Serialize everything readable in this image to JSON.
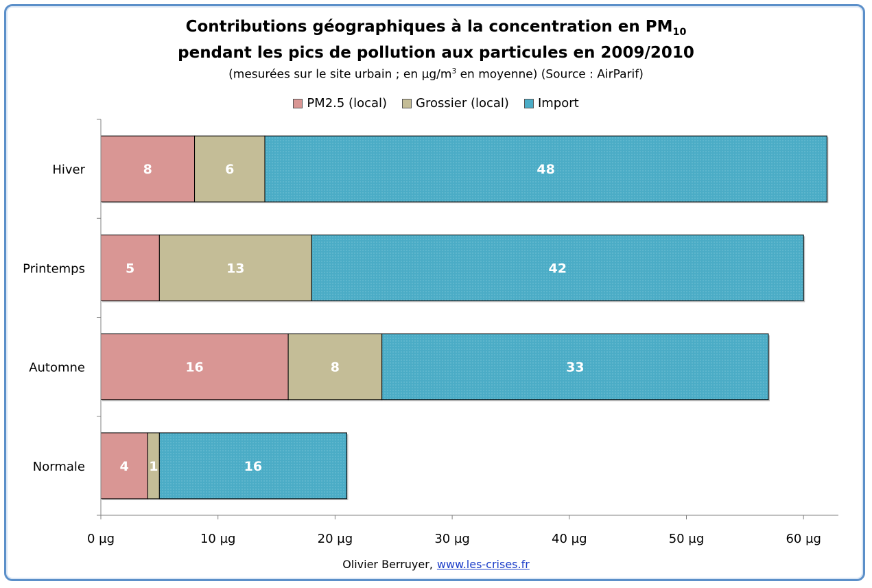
{
  "chart_data": {
    "type": "bar",
    "orientation": "horizontal",
    "stacked": true,
    "title_line1": "Contributions géographiques à la concentration en PM",
    "title_line1_sub": "10",
    "title_line2": "pendant les pics de pollution aux particules en 2009/2010",
    "subtitle_pre": "(mesurées sur le site urbain ; en µg/m",
    "subtitle_sup": "3",
    "subtitle_post": " en moyenne) (Source : AirParif)",
    "categories": [
      "Hiver",
      "Printemps",
      "Automne",
      "Normale"
    ],
    "series": [
      {
        "name": "PM2.5 (local)",
        "values": [
          8,
          5,
          16,
          4
        ],
        "display": [
          "8",
          "5",
          "16",
          "4"
        ],
        "color": "#d99694"
      },
      {
        "name": "Grossier (local)",
        "values": [
          6,
          13,
          8,
          1
        ],
        "display": [
          "6",
          "13",
          "8",
          "1"
        ],
        "color": "#c4bd97"
      },
      {
        "name": "Import",
        "values": [
          48,
          42,
          33,
          16
        ],
        "display": [
          "48",
          "42",
          "33",
          "16"
        ],
        "color": "#4bacc6"
      }
    ],
    "xlim": [
      0,
      60
    ],
    "xticks": [
      0,
      10,
      20,
      30,
      40,
      50,
      60
    ],
    "xtick_labels": [
      "0 µg",
      "10 µg",
      "20 µg",
      "30 µg",
      "40 µg",
      "50 µg",
      "60 µg"
    ],
    "legend_position": "top",
    "grid": false
  },
  "footer": {
    "author": "Olivier Berruyer,",
    "link": "www.les-crises.fr"
  }
}
